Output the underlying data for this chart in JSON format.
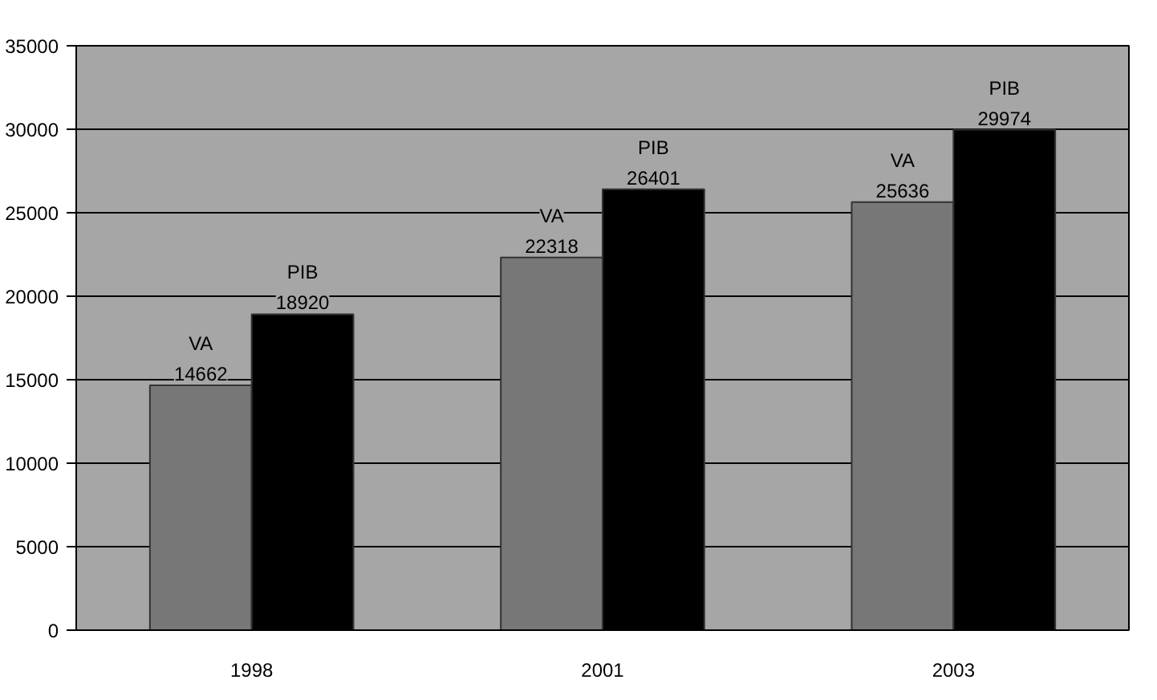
{
  "chart_data": {
    "type": "bar",
    "categories": [
      "1998",
      "2001",
      "2003"
    ],
    "series": [
      {
        "name": "VA",
        "color": "#777777",
        "values": [
          14662,
          22318,
          25636
        ]
      },
      {
        "name": "PIB",
        "color": "#000000",
        "values": [
          18920,
          26401,
          29974
        ]
      }
    ],
    "ylim": [
      0,
      35000
    ],
    "yticks": [
      0,
      5000,
      10000,
      15000,
      20000,
      25000,
      30000,
      35000
    ],
    "grid": "y",
    "data_labels": true
  }
}
